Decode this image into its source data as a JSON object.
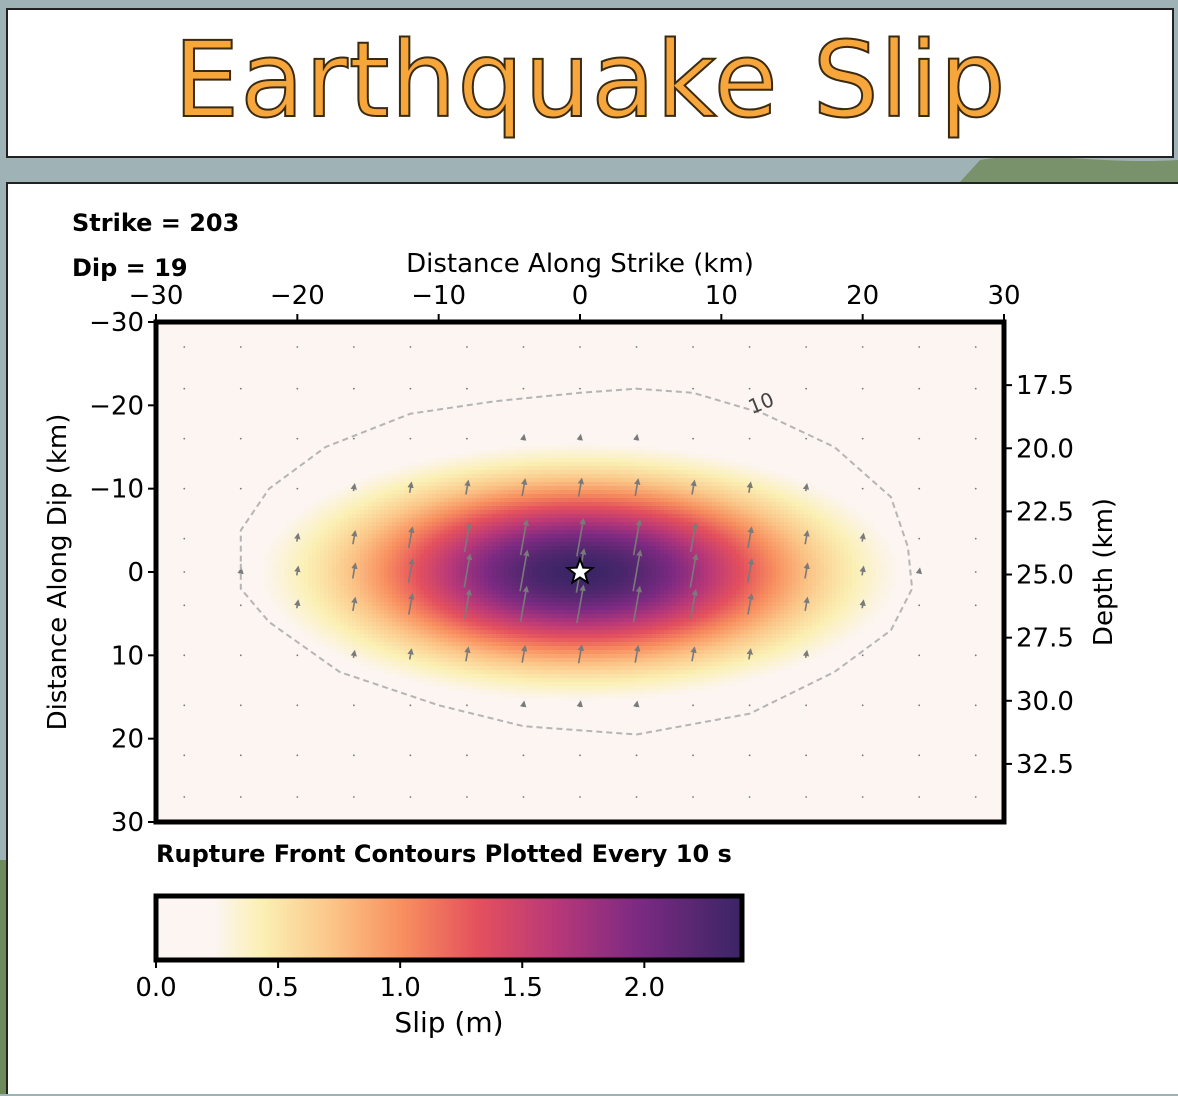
{
  "page_title": "Earthquake Slip",
  "colors": {
    "title_fill": "#f7a63c",
    "title_outline": "#3a2a10",
    "contour": "#b5b5b5",
    "arrow": "#7a7a7a",
    "star_fill": "#ffffff",
    "star_stroke": "#000000"
  },
  "chart_data": {
    "type": "heatmap",
    "colormap": "magma_r",
    "annotations": {
      "strike": "Strike = 203",
      "dip": "Dip = 19",
      "rupture_note": "Rupture Front Contours Plotted Every 10 s"
    },
    "x_axis": {
      "label": "Distance Along Strike (km)",
      "position": "top",
      "range": [
        -30,
        30
      ],
      "ticks": [
        -30,
        -20,
        -10,
        0,
        10,
        20,
        30
      ],
      "tick_labels": [
        "−30",
        "−20",
        "−10",
        "0",
        "10",
        "20",
        "30"
      ]
    },
    "y_axis_left": {
      "label": "Distance Along Dip (km)",
      "range": [
        -30,
        30
      ],
      "ticks": [
        -30,
        -20,
        -10,
        0,
        10,
        20,
        30
      ],
      "tick_labels": [
        "−30",
        "−20",
        "−10",
        "0",
        "10",
        "20",
        "30"
      ],
      "inverted": true
    },
    "y_axis_right": {
      "label": "Depth (km)",
      "range": [
        15.0,
        34.8
      ],
      "ticks": [
        17.5,
        20.0,
        22.5,
        25.0,
        27.5,
        30.0,
        32.5
      ],
      "tick_labels": [
        "17.5",
        "20.0",
        "22.5",
        "25.0",
        "27.5",
        "30.0",
        "32.5"
      ]
    },
    "slip_model": {
      "peak_slip_m": 2.4,
      "center_strike_km": 0,
      "center_dip_km": 0,
      "sigma_strike_km": 10.5,
      "sigma_dip_km": 7.2
    },
    "hypocenter": {
      "strike_km": 0,
      "dip_km": 0
    },
    "contour": {
      "level_label": "10",
      "points": [
        [
          -24,
          -1
        ],
        [
          -24,
          2
        ],
        [
          -22,
          6
        ],
        [
          -17,
          12
        ],
        [
          -10,
          16
        ],
        [
          -4,
          18.5
        ],
        [
          4,
          19.5
        ],
        [
          12,
          17
        ],
        [
          18,
          12
        ],
        [
          22,
          7
        ],
        [
          23.5,
          2
        ],
        [
          23.2,
          -3
        ],
        [
          22,
          -9
        ],
        [
          18,
          -15
        ],
        [
          13,
          -19
        ],
        [
          8,
          -21.5
        ],
        [
          4,
          -22
        ],
        [
          0,
          -21.5
        ],
        [
          -6,
          -20.5
        ],
        [
          -12,
          -19
        ],
        [
          -18,
          -15
        ],
        [
          -22,
          -10
        ],
        [
          -24,
          -5
        ],
        [
          -24,
          -1
        ]
      ],
      "label_at": [
        13,
        -19.5
      ]
    },
    "arrow_grid": {
      "x": [
        -28,
        -24,
        -20,
        -16,
        -12,
        -8,
        -4,
        0,
        4,
        8,
        12,
        16,
        20,
        24,
        28
      ],
      "y": [
        -27,
        -22,
        -16,
        -10,
        -4,
        0,
        4,
        10,
        16,
        22,
        27
      ]
    },
    "colorbar": {
      "label": "Slip (m)",
      "range": [
        0.0,
        2.4
      ],
      "ticks": [
        0.0,
        0.5,
        1.0,
        1.5,
        2.0
      ],
      "tick_labels": [
        "0.0",
        "0.5",
        "1.0",
        "1.5",
        "2.0"
      ]
    }
  }
}
